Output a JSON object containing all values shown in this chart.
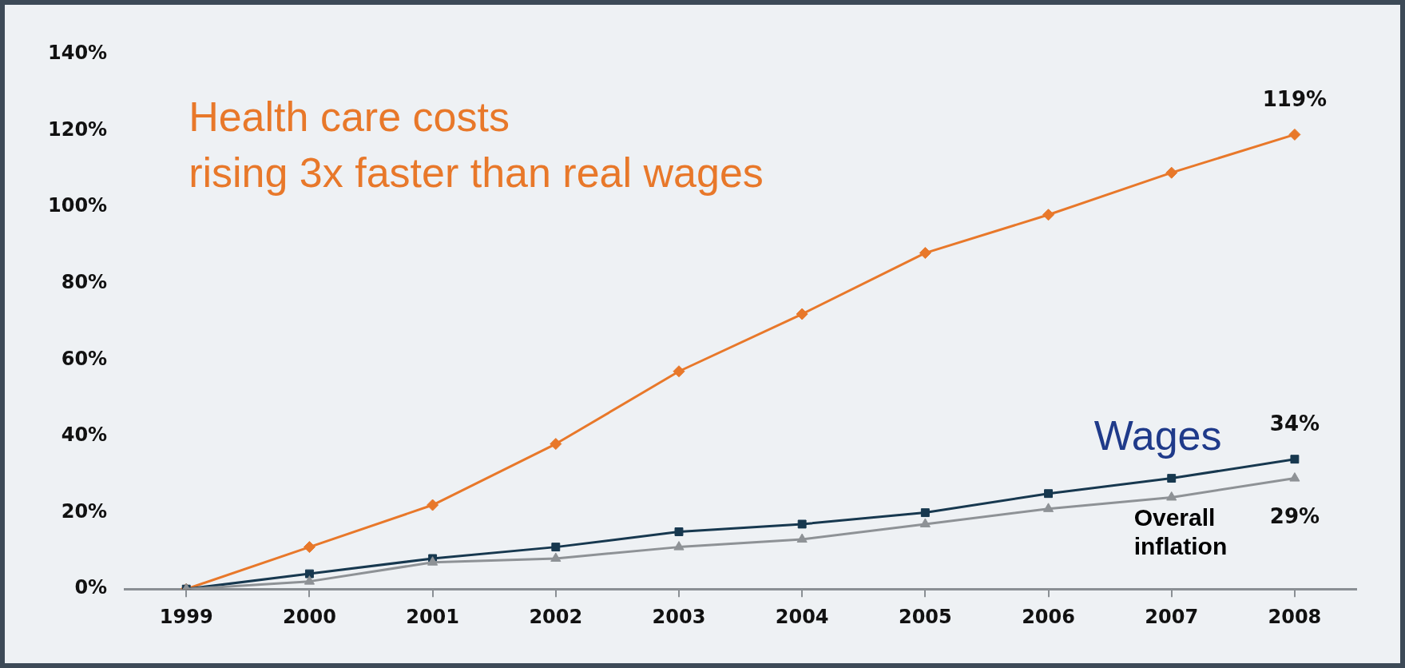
{
  "chart_data": {
    "type": "line",
    "title": "Health care costs\nrising 3x faster than real wages",
    "categories": [
      "1999",
      "2000",
      "2001",
      "2002",
      "2003",
      "2004",
      "2005",
      "2006",
      "2007",
      "2008"
    ],
    "series": [
      {
        "color": "#e8782a",
        "marker": "diamond",
        "values": [
          0,
          11,
          22,
          38,
          57,
          72,
          88,
          98,
          109,
          119
        ],
        "value_labels": [
          null,
          null,
          null,
          null,
          null,
          null,
          null,
          null,
          null,
          "119%"
        ]
      },
      {
        "name": "Wages",
        "color": "#17384f",
        "marker": "square",
        "values": [
          0,
          4,
          8,
          11,
          15,
          17,
          20,
          25,
          29,
          34
        ],
        "value_labels": [
          null,
          null,
          null,
          null,
          null,
          null,
          null,
          null,
          null,
          "34%"
        ]
      },
      {
        "name": "Overall inflation",
        "color": "#8e9296",
        "marker": "triangle",
        "values": [
          0,
          2,
          7,
          8,
          11,
          13,
          17,
          21,
          24,
          29
        ],
        "value_labels": [
          null,
          null,
          null,
          null,
          null,
          null,
          null,
          null,
          null,
          "29%"
        ]
      }
    ],
    "ylim": [
      0,
      140
    ],
    "yticks": [
      {
        "value": 0,
        "label": "0%"
      },
      {
        "value": 20,
        "label": "20%"
      },
      {
        "value": 40,
        "label": "40%"
      },
      {
        "value": 60,
        "label": "60%"
      },
      {
        "value": 80,
        "label": "80%"
      },
      {
        "value": 100,
        "label": "100%"
      },
      {
        "value": 120,
        "label": "120%"
      },
      {
        "value": 140,
        "label": "140%"
      }
    ],
    "grid": false,
    "legend": false
  }
}
